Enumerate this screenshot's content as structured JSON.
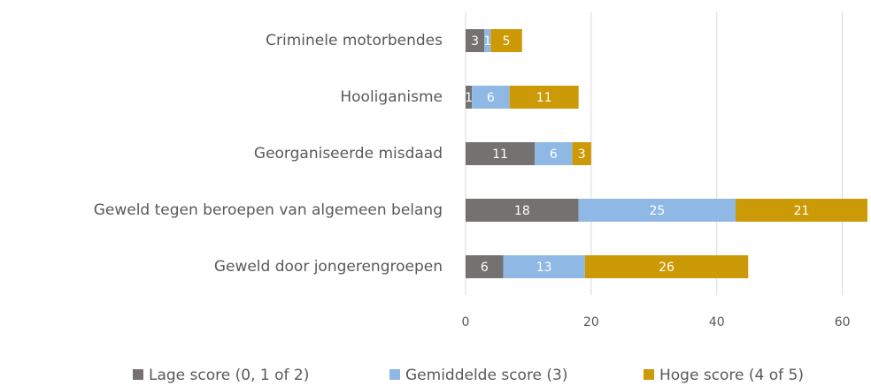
{
  "chart_data": {
    "type": "bar",
    "orientation": "horizontal",
    "stacked": true,
    "categories": [
      "Criminele motorbendes",
      "Hooliganisme",
      "Georganiseerde misdaad",
      "Geweld tegen beroepen van algemeen belang",
      "Geweld door jongerengroepen"
    ],
    "series": [
      {
        "name": "Lage score (0, 1 of 2)",
        "color": "#767171",
        "values": [
          3,
          1,
          11,
          18,
          6
        ]
      },
      {
        "name": "Gemiddelde score (3)",
        "color": "#8fb8e5",
        "values": [
          1,
          6,
          6,
          25,
          13
        ]
      },
      {
        "name": "Hoge score (4 of 5)",
        "color": "#cc9a06",
        "values": [
          5,
          11,
          3,
          21,
          26
        ]
      }
    ],
    "xlim": [
      0,
      64
    ],
    "xticks": [
      0,
      20,
      40,
      60
    ],
    "grid": true,
    "legend": "bottom"
  }
}
